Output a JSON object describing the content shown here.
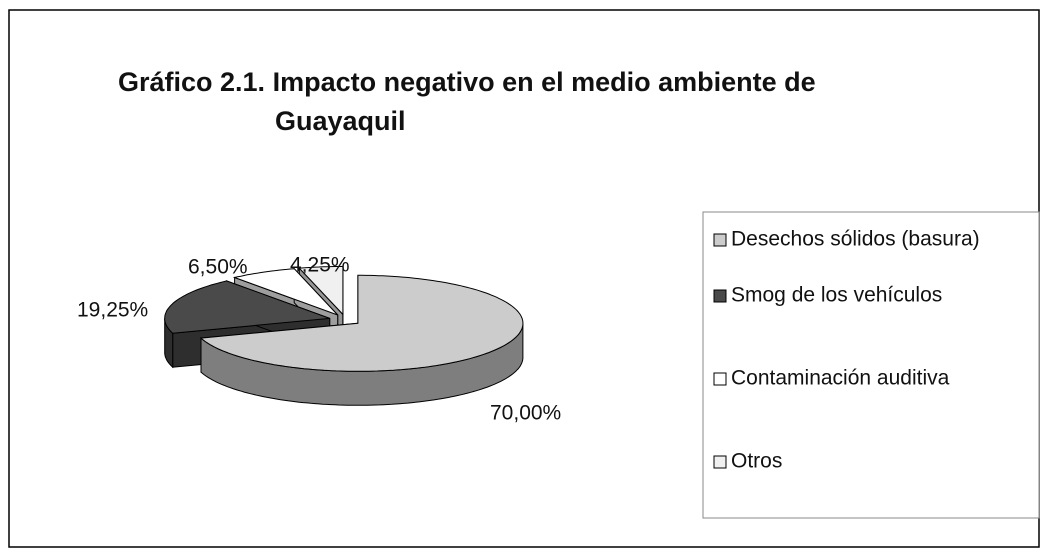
{
  "chart_data": {
    "type": "pie",
    "title": [
      "Gráfico 2.1.  Impacto negativo en el medio ambiente de",
      "Guayaquil"
    ],
    "categories": [
      "Desechos sólidos (basura)",
      "Smog de los vehículos",
      "Contaminación auditiva",
      "Otros"
    ],
    "values": [
      70,
      19.25,
      6.5,
      4.25
    ],
    "value_labels": [
      "70,00%",
      "19,25%",
      "6,50%",
      "4,25%"
    ],
    "colors": [
      "#cccccc",
      "#4a4a4a",
      "#ffffff",
      "#f0f0f0"
    ],
    "legend": "right"
  }
}
